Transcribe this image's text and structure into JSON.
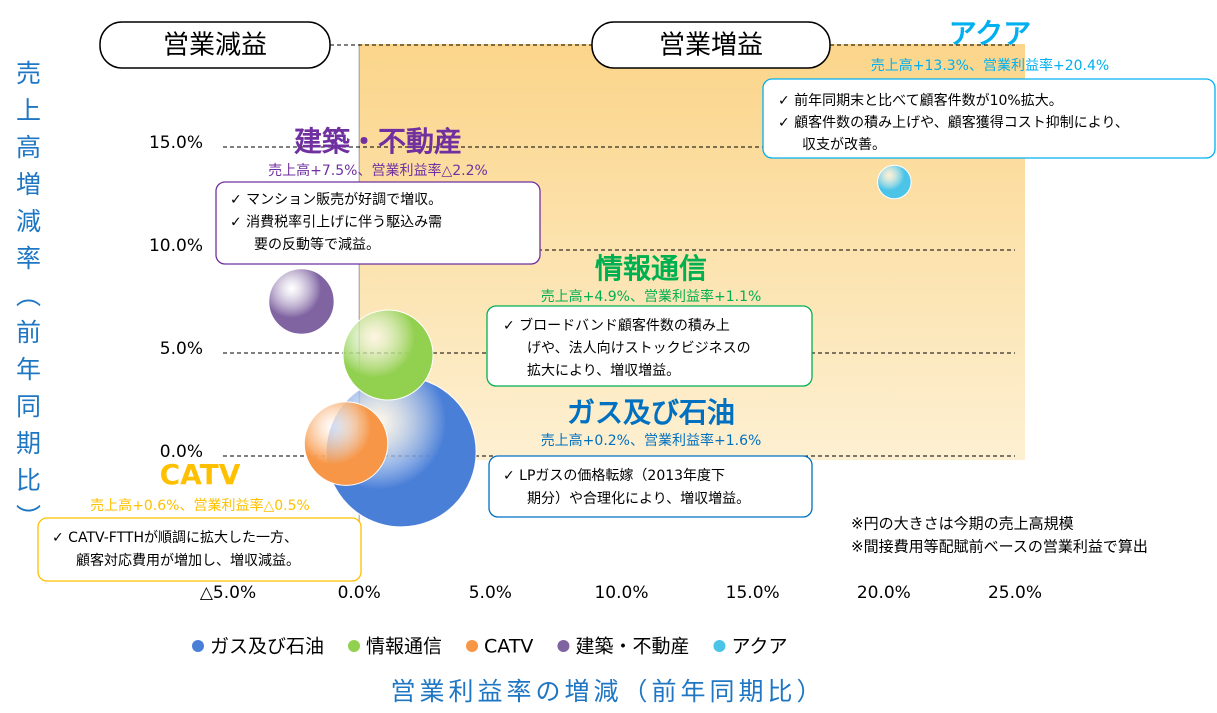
{
  "chart_data": {
    "type": "bubble",
    "x_label": "営業利益率の増減（前年同期比）",
    "y_label": "売上高増減率（前年同期比）",
    "quadrant_labels": [
      "営業減益",
      "営業増益"
    ],
    "xlim": [
      -5,
      25
    ],
    "ylim": [
      -5,
      20
    ],
    "xticks": [
      {
        "value": -5,
        "label": "△5.0%"
      },
      {
        "value": 0,
        "label": "0.0%"
      },
      {
        "value": 5,
        "label": "5.0%"
      },
      {
        "value": 10,
        "label": "10.0%"
      },
      {
        "value": 15,
        "label": "15.0%"
      },
      {
        "value": 20,
        "label": "20.0%"
      },
      {
        "value": 25,
        "label": "25.0%"
      }
    ],
    "yticks": [
      {
        "value": 0,
        "label": "0.0%"
      },
      {
        "value": 5,
        "label": "5.0%"
      },
      {
        "value": 10,
        "label": "10.0%"
      },
      {
        "value": 15,
        "label": "15.0%"
      }
    ],
    "grid": true,
    "notes": [
      "※円の大きさは今期の売上高規模",
      "※間接費用等配賦前ベースの営業利益で算出"
    ],
    "series": [
      {
        "name": "ガス及び石油",
        "color": "#4a7fd8",
        "label_color": "#0070c0",
        "x": [
          1.6
        ],
        "values": [
          0.2
        ],
        "sizes": [
          100
        ],
        "note": "売上高+0.2%、営業利益率+1.6%",
        "comments": [
          "✓ LPガスの価格転嫁（2013年度下",
          "期分）や合理化により、増収増益。"
        ]
      },
      {
        "name": "情報通信",
        "color": "#92d050",
        "label_color": "#00b050",
        "x": [
          1.1
        ],
        "values": [
          4.9
        ],
        "sizes": [
          36
        ],
        "note": "売上高+4.9%、営業利益率+1.1%",
        "comments": [
          "✓ ブロードバンド顧客件数の積み上",
          "げや、法人向けストックビジネスの",
          "拡大により、増収増益。"
        ]
      },
      {
        "name": "CATV",
        "color": "#f79646",
        "label_color": "#ffc000",
        "x": [
          -0.5
        ],
        "values": [
          0.6
        ],
        "sizes": [
          31
        ],
        "note": "売上高+0.6%、営業利益率△0.5%",
        "comments": [
          "✓ CATV-FTTHが順調に拡大した一方、",
          "顧客対応費用が増加し、増収減益。"
        ]
      },
      {
        "name": "建築・不動産",
        "color": "#8064a2",
        "label_color": "#7030a0",
        "x": [
          -2.2
        ],
        "values": [
          7.5
        ],
        "sizes": [
          19
        ],
        "note": "売上高+7.5%、営業利益率△2.2%",
        "comments": [
          "✓ マンション販売が好調で増収。",
          "✓ 消費税率引上げに伴う駆込み需",
          "要の反動等で減益。"
        ]
      },
      {
        "name": "アクア",
        "color": "#4bc4e8",
        "label_color": "#00b0f0",
        "x": [
          20.4
        ],
        "values": [
          13.3
        ],
        "sizes": [
          5
        ],
        "note": "売上高+13.3%、営業利益率+20.4%",
        "comments": [
          "✓ 前年同期末と比べて顧客件数が10%拡大。",
          "✓ 顧客件数の積み上げや、顧客獲得コスト抑制により、",
          "収支が改善。"
        ]
      }
    ]
  }
}
